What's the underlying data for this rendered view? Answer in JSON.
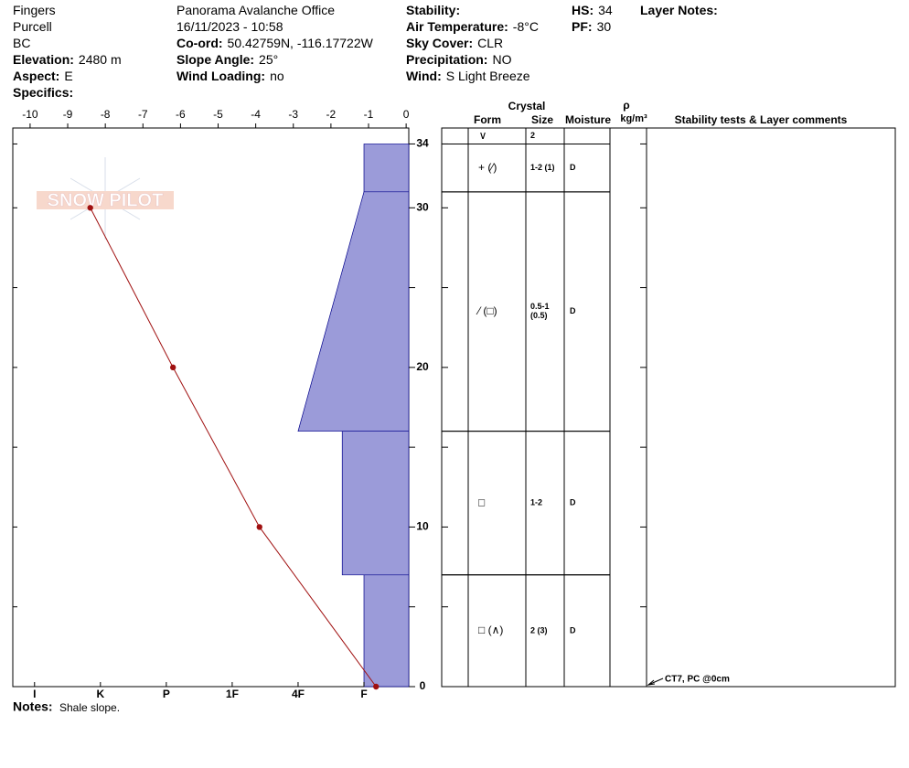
{
  "header": {
    "columns": [
      [
        {
          "value": "Fingers"
        },
        {
          "value": "Purcell"
        },
        {
          "value": "BC"
        },
        {
          "label": "Elevation:",
          "value": "2480 m"
        },
        {
          "label": "Aspect:",
          "value": "E"
        },
        {
          "label": "Specifics:"
        }
      ],
      [
        {
          "value": "Panorama Avalanche Office"
        },
        {
          "value": "16/11/2023 - 10:58"
        },
        {
          "label": "Co-ord:",
          "value": "50.42759N, -116.17722W"
        },
        {
          "label": "Slope Angle:",
          "value": "25°"
        },
        {
          "label": "Wind Loading:",
          "value": "no"
        }
      ],
      [
        {
          "label": "Stability:"
        },
        {
          "label": "Air Temperature:",
          "value": "-8°C"
        },
        {
          "label": "Sky Cover:",
          "value": "CLR"
        },
        {
          "label": "Precipitation:",
          "value": "NO"
        },
        {
          "label": "Wind:",
          "value": "S Light Breeze"
        }
      ],
      [
        {
          "label": "HS:",
          "value": "34"
        },
        {
          "label": "PF:",
          "value": "30"
        }
      ],
      [
        {
          "label": "Layer Notes:"
        }
      ]
    ]
  },
  "logo": "SNOW PILOT",
  "chart_data": {
    "type": "snow-profile",
    "ylim": [
      0,
      35
    ],
    "yticks": [
      0,
      10,
      20,
      30,
      34
    ],
    "yminor": [
      5,
      15,
      25
    ],
    "temp_lim": [
      -10.46,
      0.07
    ],
    "temp_ticks": [
      -10,
      -9,
      -8,
      -7,
      -6,
      -5,
      -4,
      -3,
      -2,
      -1,
      0
    ],
    "hardness_lim": [
      6.33,
      0.32
    ],
    "hardness_ticks": [
      {
        "value": 6,
        "label": "I"
      },
      {
        "value": 5,
        "label": "K"
      },
      {
        "value": 4,
        "label": "P"
      },
      {
        "value": 3,
        "label": "1F"
      },
      {
        "value": 2,
        "label": "4F"
      },
      {
        "value": 1,
        "label": "F"
      }
    ],
    "layer_color": "#9b9bd9",
    "temp_color": "#a01010",
    "temperature": {
      "heights": [
        0,
        10,
        20,
        30
      ],
      "values": [
        -0.8,
        -3.9,
        -6.2,
        -8.4
      ]
    },
    "surface": {
      "form": "∨",
      "size": "2"
    },
    "layers": [
      {
        "top": 34,
        "bottom": 31,
        "hardness_top": 1,
        "hardness_bottom": 1,
        "form": "+ (⁄)",
        "size": "1-2 (1)",
        "moisture": "D"
      },
      {
        "top": 31,
        "bottom": 16,
        "hardness_top": 1,
        "hardness_bottom": 2,
        "form": "⁄ (□)",
        "size": "0.5-1 (0.5)",
        "moisture": "D"
      },
      {
        "top": 16,
        "bottom": 7,
        "hardness_top": 1.33,
        "hardness_bottom": 1.33,
        "form": "□",
        "size": "1-2",
        "moisture": "D"
      },
      {
        "top": 7,
        "bottom": 0,
        "hardness_top": 1,
        "hardness_bottom": 1,
        "form": "□ (∧)",
        "size": "2 (3)",
        "moisture": "D"
      }
    ],
    "table_headers": {
      "crystal": "Crystal",
      "form": "Form",
      "size": "Size",
      "moisture": "Moisture",
      "rho": "ρ",
      "density_unit": "kg/m³",
      "comments": "Stability tests & Layer comments"
    },
    "comment": {
      "text": "CT7, PC @0cm",
      "height": 0
    },
    "notes_label": "Notes:",
    "notes": "Shale slope."
  }
}
